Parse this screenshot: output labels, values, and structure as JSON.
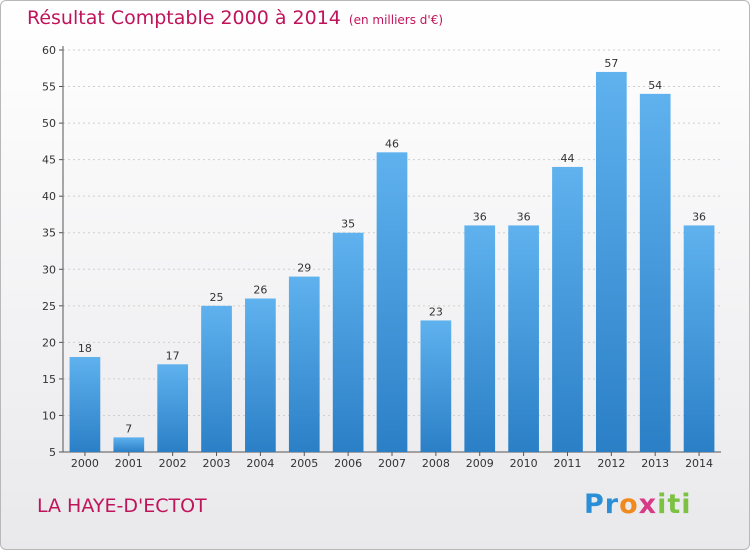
{
  "header": {
    "title": "Résultat Comptable 2000 à 2014",
    "unit": "(en milliers d'€)"
  },
  "footer": {
    "city": "LA HAYE-D'ECTOT",
    "logo_text": "Proxiti"
  },
  "colors": {
    "title": "#c0145a",
    "bar_top": "#5fb2ee",
    "bar_bottom": "#2b7fc6",
    "grid": "#cfcfcf"
  },
  "chart_data": {
    "type": "bar",
    "categories": [
      "2000",
      "2001",
      "2002",
      "2003",
      "2004",
      "2005",
      "2006",
      "2007",
      "2008",
      "2009",
      "2010",
      "2011",
      "2012",
      "2013",
      "2014"
    ],
    "values": [
      18,
      7,
      17,
      25,
      26,
      29,
      35,
      46,
      23,
      36,
      36,
      44,
      57,
      54,
      36
    ],
    "title": "Résultat Comptable 2000 à 2014",
    "xlabel": "",
    "ylabel": "",
    "ylim": [
      5,
      60
    ],
    "yticks": [
      5,
      10,
      15,
      20,
      25,
      30,
      35,
      40,
      45,
      50,
      55,
      60
    ],
    "grid": true,
    "data_labels": true
  }
}
